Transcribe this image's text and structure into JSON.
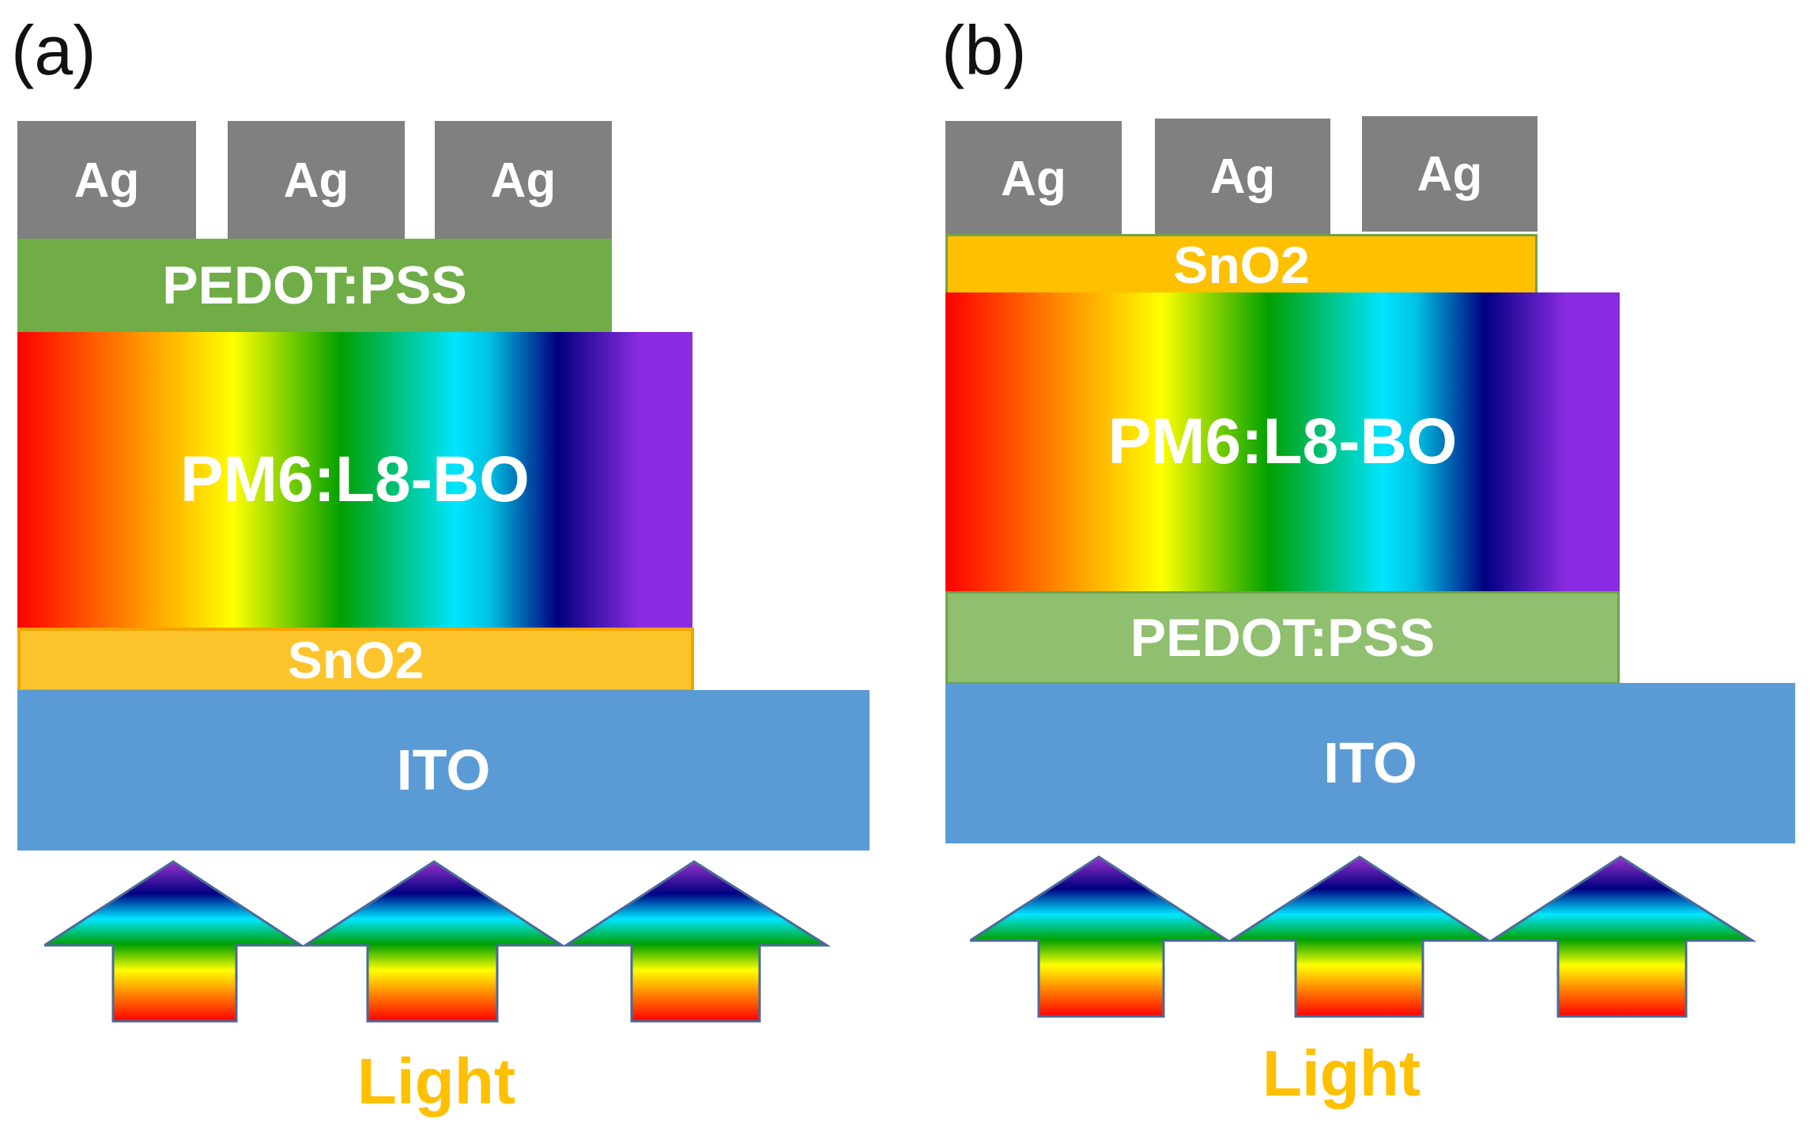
{
  "panel_a": {
    "label": "(a)",
    "ag": [
      "Ag",
      "Ag",
      "Ag"
    ],
    "pedot": "PEDOT:PSS",
    "active": "PM6:L8-BO",
    "sno2": "SnO2",
    "ito": "ITO",
    "light": "Light"
  },
  "panel_b": {
    "label": "(b)",
    "ag": [
      "Ag",
      "Ag",
      "Ag"
    ],
    "sno2": "SnO2",
    "active": "PM6:L8-BO",
    "pedot": "PEDOT:PSS",
    "ito": "ITO",
    "light": "Light"
  },
  "colors": {
    "ag": "#808080",
    "pedot_a": "#70ad47",
    "pedot_b": "#8fbf6f",
    "sno2": "#ffc000",
    "ito": "#5b9bd5",
    "light_text": "#ffc000",
    "active_gradient": [
      "#ff0000",
      "#ff7a00",
      "#ffff00",
      "#00a000",
      "#00e5ff",
      "#000080",
      "#8a2be2"
    ]
  },
  "icons": [
    "light-arrow-icon"
  ]
}
